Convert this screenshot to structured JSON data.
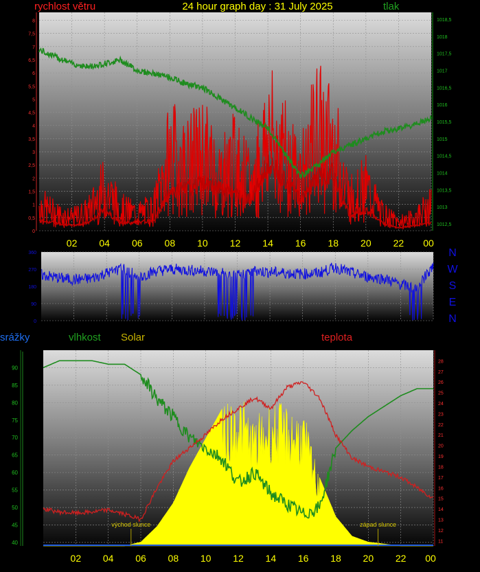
{
  "header": {
    "title": "24 hour graph day : 31 July 2025",
    "left_label": "rychlost větru",
    "right_label": "tlak"
  },
  "colors": {
    "background": "#000000",
    "wind": "#e00000",
    "pressure": "#1e8c1e",
    "direction": "#1010e0",
    "humidity": "#1e8c1e",
    "temperature": "#d02020",
    "solar": "#ffff00",
    "rain": "#1e5ae0",
    "title": "#ffff00",
    "tick_left": "#ff3030",
    "tick_right": "#20c020"
  },
  "time_axis": [
    "02",
    "04",
    "06",
    "08",
    "10",
    "12",
    "14",
    "16",
    "18",
    "20",
    "22",
    "00"
  ],
  "chart_data": [
    {
      "type": "line",
      "id": "wind_pressure",
      "ylabel_left": "rychlost větru",
      "ylabel_right": "tlak",
      "left_ticks": [
        "0",
        "0,5",
        "1",
        "1,5",
        "2",
        "2,5",
        "3",
        "3,5",
        "4",
        "4,5",
        "5",
        "5,5",
        "6",
        "6,5",
        "7",
        "7,5",
        "8"
      ],
      "right_ticks": [
        "1012,5",
        "1013",
        "1013,5",
        "1014",
        "1014,5",
        "1015",
        "1015,5",
        "1016",
        "1016,5",
        "1017",
        "1017,5",
        "1018",
        "1018,5"
      ],
      "ylim_left": [
        0,
        8.3
      ],
      "ylim_right": [
        1012.3,
        1018.7
      ],
      "grid": true,
      "x_hours": [
        0,
        1,
        2,
        3,
        4,
        5,
        6,
        7,
        8,
        9,
        10,
        11,
        12,
        13,
        14,
        15,
        16,
        17,
        18,
        19,
        20,
        21,
        22,
        23,
        24
      ],
      "series": [
        {
          "role": "gust",
          "values": [
            1.2,
            0.8,
            0.6,
            0.9,
            2.0,
            1.0,
            0.8,
            1.0,
            3.5,
            3.0,
            3.6,
            2.5,
            3.2,
            2.0,
            4.5,
            3.5,
            2.5,
            4.5,
            4.0,
            1.5,
            2.0,
            0.8,
            0.4,
            0.6,
            1.2
          ]
        },
        {
          "role": "average",
          "values": [
            0.4,
            0.3,
            0.2,
            0.3,
            0.8,
            0.3,
            0.3,
            0.4,
            1.5,
            1.6,
            1.8,
            1.6,
            1.4,
            1.2,
            2.5,
            2.0,
            1.2,
            2.0,
            2.2,
            0.6,
            0.8,
            0.3,
            0.1,
            0.2,
            0.3
          ]
        },
        {
          "role": "pressure",
          "values": [
            1017.6,
            1017.4,
            1017.2,
            1017.1,
            1017.2,
            1017.3,
            1017.0,
            1016.9,
            1016.8,
            1016.6,
            1016.5,
            1016.2,
            1015.9,
            1015.6,
            1015.3,
            1014.6,
            1013.9,
            1014.2,
            1014.6,
            1014.8,
            1015.0,
            1015.2,
            1015.3,
            1015.4,
            1015.6
          ]
        }
      ]
    },
    {
      "type": "scatter",
      "id": "direction",
      "ylabel_right": "N W S E N",
      "ticks": [
        "0",
        "90",
        "180",
        "270",
        "360"
      ],
      "ylim": [
        0,
        360
      ],
      "grid": true,
      "x_hours": [
        0,
        1,
        2,
        3,
        4,
        5,
        6,
        7,
        8,
        9,
        10,
        11,
        12,
        13,
        14,
        15,
        16,
        17,
        18,
        19,
        20,
        21,
        22,
        23,
        24
      ],
      "series": [
        {
          "role": "direction",
          "values": [
            240,
            225,
            215,
            220,
            250,
            270,
            230,
            260,
            270,
            265,
            260,
            250,
            235,
            260,
            255,
            250,
            245,
            250,
            280,
            250,
            230,
            220,
            190,
            170,
            290
          ]
        }
      ]
    },
    {
      "type": "area",
      "id": "humidity_temperature_solar",
      "ylabel_left_1": "srážky",
      "ylabel_left_2": "vlhkost",
      "ylabel_left_3": "Solar",
      "ylabel_right": "teplota",
      "left_ticks": [
        "40",
        "45",
        "50",
        "55",
        "60",
        "65",
        "70",
        "75",
        "80",
        "85",
        "90"
      ],
      "right_ticks": [
        "11",
        "12",
        "13",
        "14",
        "15",
        "16",
        "17",
        "18",
        "19",
        "20",
        "21",
        "22",
        "23",
        "24",
        "25",
        "26",
        "27",
        "28"
      ],
      "ylim_left": [
        39,
        95
      ],
      "ylim_right": [
        10.5,
        29
      ],
      "grid": true,
      "annotations": [
        {
          "text": "východ slunce",
          "hour": 5.4
        },
        {
          "text": "západ slunce",
          "hour": 20.6
        }
      ],
      "x_hours": [
        0,
        1,
        2,
        3,
        4,
        5,
        6,
        7,
        8,
        9,
        10,
        11,
        12,
        13,
        14,
        15,
        16,
        17,
        18,
        19,
        20,
        21,
        22,
        23,
        24
      ],
      "series": [
        {
          "role": "humidity",
          "values": [
            90,
            92,
            92,
            92,
            91,
            91,
            88,
            81,
            76,
            70,
            67,
            64,
            57,
            60,
            54,
            51,
            48,
            50,
            67,
            72,
            76,
            79,
            82,
            84,
            84
          ]
        },
        {
          "role": "temperature",
          "values": [
            14.0,
            13.7,
            13.6,
            13.7,
            13.9,
            13.5,
            13.0,
            16.0,
            18.5,
            19.8,
            21.0,
            22.5,
            23.5,
            24.5,
            23.5,
            25.5,
            26.0,
            24.5,
            21.0,
            18.8,
            18.0,
            17.5,
            17.0,
            16.0,
            15.0
          ]
        },
        {
          "role": "solar",
          "values": [
            0,
            0,
            0,
            0,
            0,
            0,
            0.02,
            0.1,
            0.22,
            0.4,
            0.55,
            0.7,
            0.8,
            0.65,
            0.75,
            0.72,
            0.7,
            0.35,
            0.15,
            0.05,
            0.02,
            0.01,
            0,
            0,
            0
          ]
        },
        {
          "role": "rain",
          "values": [
            0,
            0,
            0,
            0,
            0,
            0,
            0,
            0,
            0,
            0,
            0,
            0,
            0,
            0,
            0,
            0,
            0,
            0,
            0,
            0,
            0,
            0,
            0,
            0,
            0
          ]
        }
      ]
    }
  ]
}
